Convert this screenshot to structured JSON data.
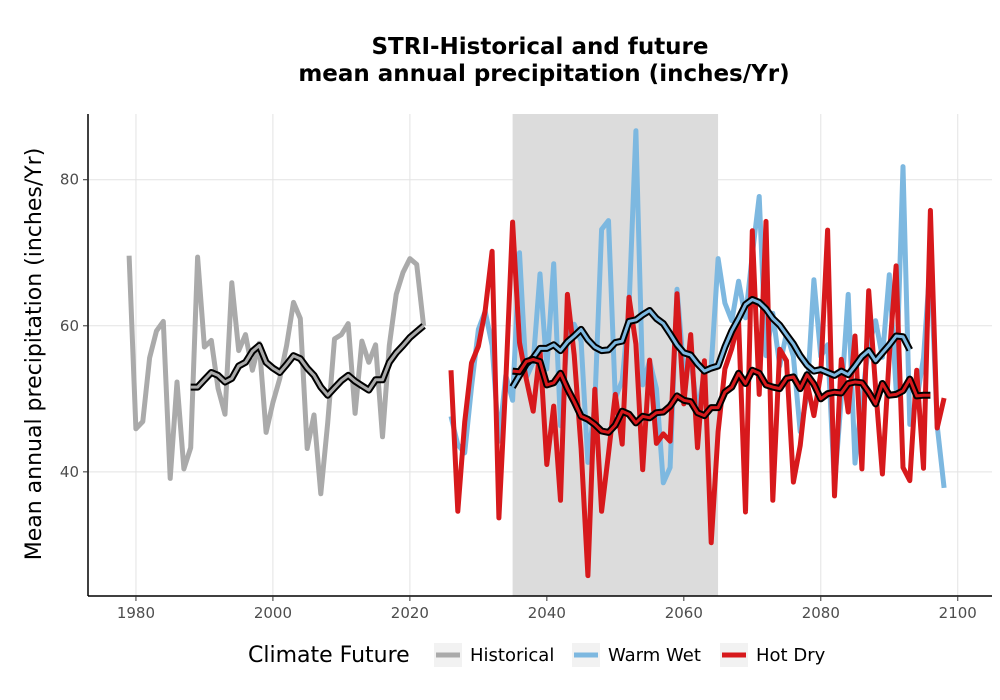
{
  "chart_data": {
    "type": "line",
    "title": [
      "STRI-Historical and future",
      "mean annual precipitation (inches/Yr)"
    ],
    "xlabel": "",
    "ylabel": "Mean annual precipitation (inches/Yr)",
    "xlim": [
      1973,
      2105
    ],
    "ylim": [
      23,
      89
    ],
    "x_ticks": [
      1980,
      2000,
      2020,
      2040,
      2060,
      2080,
      2100
    ],
    "y_ticks": [
      40,
      60,
      80
    ],
    "grid": true,
    "highlight_band": [
      2035,
      2065
    ],
    "legend": {
      "title": "Climate Future",
      "position": "bottom"
    },
    "colors": {
      "Historical": "#aaaaaa",
      "Warm Wet": "#7db8e0",
      "Hot Dry": "#d7191c",
      "band": "#dcdcdc",
      "smooth_outline": "#000000"
    },
    "series": [
      {
        "name": "Historical",
        "x_start": 1979,
        "values": [
          69.6,
          45.9,
          46.9,
          55.6,
          59.3,
          60.6,
          39.1,
          52.3,
          40.4,
          43.3,
          69.4,
          57.1,
          58.0,
          51.4,
          47.9,
          65.9,
          56.6,
          58.8,
          53.9,
          57.6,
          45.4,
          49.5,
          52.8,
          57.3,
          63.2,
          61.0,
          43.2,
          47.8,
          37.0,
          46.7,
          58.2,
          58.8,
          60.3,
          48.0,
          57.9,
          55.0,
          57.4,
          44.8,
          57.3,
          64.3,
          67.3,
          69.2,
          68.4,
          60.0
        ],
        "smooth_x_start": 1988,
        "smooth": [
          51.6,
          51.6,
          52.6,
          53.6,
          53.2,
          52.3,
          52.8,
          54.5,
          55.0,
          56.5,
          57.3,
          55.0,
          54.2,
          53.6,
          54.7,
          55.9,
          55.5,
          54.2,
          53.2,
          51.6,
          50.5,
          51.5,
          52.5,
          53.2,
          52.4,
          51.8,
          51.2,
          52.6,
          52.6,
          55.0,
          56.3,
          57.3,
          58.4,
          59.2,
          60.0
        ]
      },
      {
        "name": "Warm Wet",
        "x_start": 2026,
        "values": [
          47.6,
          43.7,
          42.6,
          51.6,
          59.5,
          62.0,
          57.3,
          44.2,
          53.2,
          49.8,
          70.0,
          52.9,
          55.0,
          67.1,
          54.1,
          68.5,
          46.3,
          58.4,
          60.2,
          57.9,
          41.3,
          49.2,
          73.2,
          74.4,
          50.1,
          52.5,
          62.5,
          86.7,
          51.9,
          55.2,
          51.4,
          38.5,
          40.6,
          65.0,
          53.9,
          55.6,
          48.2,
          53.6,
          54.4,
          69.2,
          63.1,
          60.7,
          66.1,
          61.1,
          69.7,
          77.7,
          55.9,
          61.7,
          54.5,
          59.0,
          55.8,
          45.5,
          50.6,
          66.3,
          55.8,
          57.4,
          38.0,
          50.2,
          64.3,
          41.2,
          50.1,
          57.2,
          60.7,
          55.7,
          67.0,
          51.3,
          81.8,
          46.5,
          49.8,
          55.6,
          69.1,
          46.3,
          37.8
        ],
        "smooth_x_start": 2035,
        "smooth": [
          51.6,
          53.2,
          54.8,
          55.6,
          56.9,
          56.9,
          57.4,
          56.6,
          57.8,
          58.6,
          59.5,
          58.1,
          57.1,
          56.6,
          56.7,
          57.7,
          57.9,
          60.6,
          60.8,
          61.5,
          62.1,
          61.0,
          60.3,
          58.9,
          57.4,
          56.3,
          56.0,
          54.8,
          53.8,
          54.2,
          54.5,
          57.1,
          59.3,
          61.0,
          62.9,
          63.6,
          63.2,
          62.3,
          61.0,
          60.1,
          58.8,
          57.5,
          55.9,
          54.6,
          53.8,
          54.0,
          53.6,
          53.2,
          53.8,
          53.3,
          54.5,
          55.8,
          56.6,
          55.2,
          56.3,
          57.4,
          58.6,
          58.5,
          56.7
        ]
      },
      {
        "name": "Hot Dry",
        "x_start": 2026,
        "values": [
          53.9,
          34.6,
          46.8,
          54.9,
          57.2,
          62.1,
          70.2,
          33.7,
          52.4,
          74.2,
          57.7,
          52.7,
          48.3,
          56.7,
          41.0,
          49.0,
          36.1,
          64.3,
          56.0,
          43.2,
          25.8,
          51.3,
          34.6,
          42.5,
          50.6,
          43.8,
          63.9,
          57.5,
          40.3,
          55.3,
          43.9,
          45.2,
          44.2,
          64.4,
          49.3,
          58.8,
          43.3,
          55.2,
          30.3,
          45.5,
          54.1,
          56.9,
          60.6,
          34.5,
          73.0,
          50.6,
          74.3,
          36.1,
          56.8,
          55.2,
          38.6,
          43.6,
          52.2,
          47.7,
          53.5,
          73.1,
          36.7,
          55.4,
          48.2,
          58.6,
          40.4,
          64.8,
          51.5,
          39.7,
          55.9,
          68.2,
          40.6,
          38.8,
          53.9,
          40.5,
          75.8,
          46.0,
          50.1
        ],
        "smooth_x_start": 2035,
        "smooth": [
          53.8,
          53.7,
          55.1,
          55.4,
          55.1,
          51.9,
          52.2,
          53.5,
          51.4,
          49.6,
          47.6,
          47.2,
          46.5,
          45.6,
          45.4,
          46.4,
          48.3,
          47.9,
          46.7,
          47.6,
          47.4,
          48.1,
          48.2,
          49.0,
          50.4,
          49.8,
          49.6,
          48.1,
          47.7,
          48.8,
          48.8,
          50.9,
          51.6,
          53.5,
          52.1,
          53.9,
          53.5,
          51.9,
          51.6,
          51.4,
          52.8,
          53.0,
          51.4,
          53.3,
          52.0,
          50.0,
          50.7,
          50.9,
          50.8,
          52.1,
          52.3,
          52.2,
          50.9,
          49.3,
          52.1,
          50.5,
          50.6,
          51.1,
          52.7,
          50.4,
          50.5,
          50.5
        ]
      }
    ]
  }
}
